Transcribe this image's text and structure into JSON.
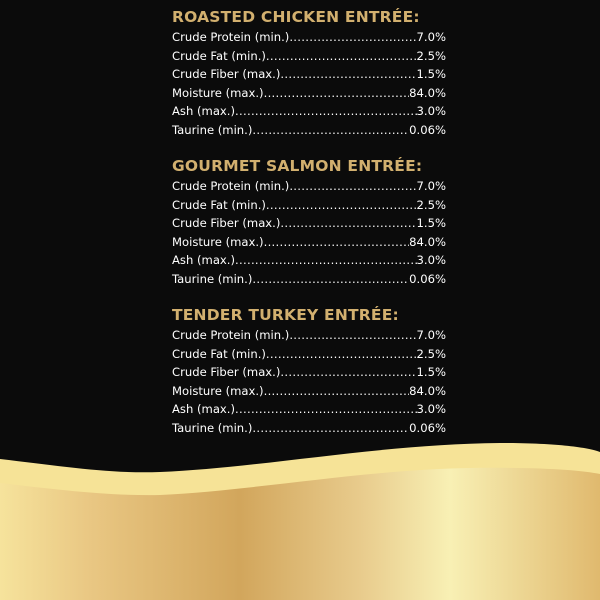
{
  "sections": [
    {
      "title": "ROASTED CHICKEN ENTRÉE:",
      "rows": [
        {
          "label": "Crude Protein (min.)",
          "value": "7.0%"
        },
        {
          "label": "Crude Fat (min.)",
          "value": "2.5%"
        },
        {
          "label": "Crude Fiber (max.)",
          "value": "1.5%"
        },
        {
          "label": "Moisture (max.)",
          "value": "84.0%"
        },
        {
          "label": "Ash (max.)",
          "value": "3.0%"
        },
        {
          "label": "Taurine (min.)",
          "value": "0.06%"
        }
      ]
    },
    {
      "title": "GOURMET SALMON ENTRÉE:",
      "rows": [
        {
          "label": "Crude Protein (min.)",
          "value": "7.0%"
        },
        {
          "label": "Crude Fat (min.)",
          "value": "2.5%"
        },
        {
          "label": "Crude Fiber (max.)",
          "value": "1.5%"
        },
        {
          "label": "Moisture (max.)",
          "value": "84.0%"
        },
        {
          "label": "Ash (max.)",
          "value": "3.0%"
        },
        {
          "label": "Taurine (min.)",
          "value": "0.06%"
        }
      ]
    },
    {
      "title": "TENDER TURKEY ENTRÉE:",
      "rows": [
        {
          "label": "Crude Protein (min.)",
          "value": "7.0%"
        },
        {
          "label": "Crude Fat (min.)",
          "value": "2.5%"
        },
        {
          "label": "Crude Fiber (max.)",
          "value": "1.5%"
        },
        {
          "label": "Moisture (max.)",
          "value": "84.0%"
        },
        {
          "label": "Ash (max.)",
          "value": "3.0%"
        },
        {
          "label": "Taurine (min.)",
          "value": "0.06%"
        }
      ]
    }
  ],
  "colors": {
    "background": "#0b0b0b",
    "heading": "#d2b06f",
    "text": "#ffffff",
    "gold_light": "#f7e49a",
    "gold_dark": "#d2a85c"
  }
}
